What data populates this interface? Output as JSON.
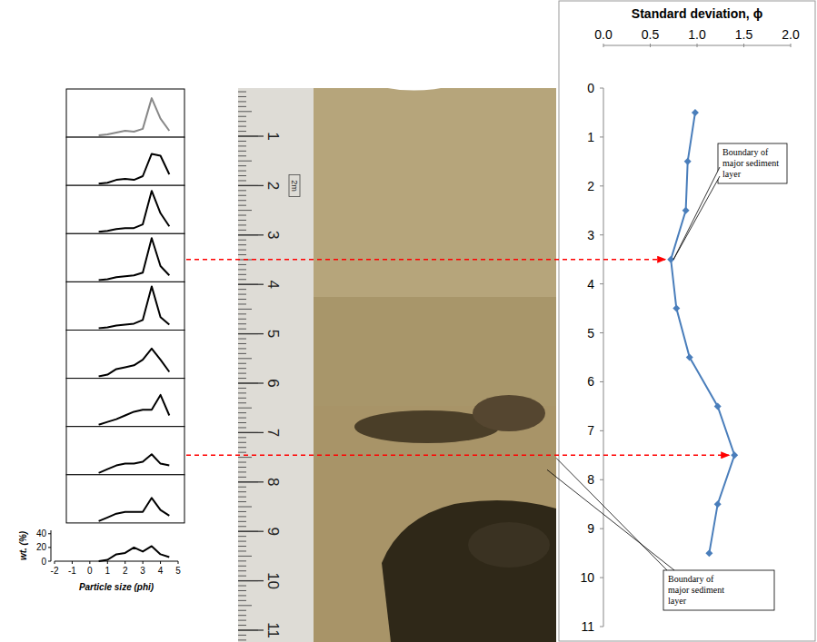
{
  "chart_data": [
    {
      "type": "line",
      "title": "Standard deviation, ϕ",
      "orientation": "horizontal",
      "x": [
        0.5,
        1.5,
        2.5,
        3.5,
        4.5,
        5.5,
        6.5,
        7.5,
        8.5,
        9.5
      ],
      "values": [
        0.98,
        0.9,
        0.88,
        0.72,
        0.78,
        0.92,
        1.22,
        1.4,
        1.22,
        1.13
      ],
      "color": "#4a7ebb",
      "marker": "diamond",
      "xlim": [
        0,
        11
      ],
      "xticks": [
        0,
        1,
        2,
        3,
        4,
        5,
        6,
        7,
        8,
        9,
        10,
        11
      ],
      "ylim": [
        0,
        2
      ],
      "yticks": [
        {
          "value": 0,
          "label": "0.0"
        },
        {
          "value": 0.5,
          "label": "0.5"
        },
        {
          "value": 1,
          "label": "1.0"
        },
        {
          "value": 1.5,
          "label": "1.5"
        },
        {
          "value": 2,
          "label": "2.0"
        }
      ],
      "annotations": [
        {
          "text": "Boundary of major sediment layer",
          "x": 3.5
        },
        {
          "text": "Boundary of major sediment layer",
          "x": 7.5
        }
      ]
    },
    {
      "type": "line",
      "tick_labels": false,
      "color": "#888888",
      "xlim": [
        -2,
        5
      ],
      "ylim": [
        0,
        45
      ],
      "x": [
        0.5,
        1,
        1.5,
        2,
        2.5,
        3,
        3.5,
        4,
        4.5
      ],
      "values": [
        0,
        1,
        3,
        5,
        4,
        7,
        40,
        18,
        5
      ]
    },
    {
      "type": "line",
      "tick_labels": false,
      "color": "#000000",
      "xlim": [
        -2,
        5
      ],
      "ylim": [
        0,
        45
      ],
      "x": [
        0.5,
        1,
        1.5,
        2,
        2.5,
        3,
        3.5,
        4,
        4.5
      ],
      "values": [
        0,
        1,
        4,
        5,
        4,
        8,
        32,
        30,
        10
      ]
    },
    {
      "type": "line",
      "tick_labels": false,
      "color": "#000000",
      "xlim": [
        -2,
        5
      ],
      "ylim": [
        0,
        45
      ],
      "x": [
        0.5,
        1,
        1.5,
        2,
        2.5,
        3,
        3.5,
        4,
        4.5
      ],
      "values": [
        0,
        1,
        3,
        4,
        4,
        8,
        44,
        20,
        6
      ]
    },
    {
      "type": "line",
      "tick_labels": false,
      "color": "#000000",
      "xlim": [
        -2,
        5
      ],
      "ylim": [
        0,
        45
      ],
      "x": [
        0.5,
        1,
        1.5,
        2,
        2.5,
        3,
        3.5,
        4,
        4.5
      ],
      "values": [
        0,
        1,
        3,
        4,
        5,
        8,
        45,
        15,
        5
      ]
    },
    {
      "type": "line",
      "tick_labels": false,
      "color": "#000000",
      "xlim": [
        -2,
        5
      ],
      "ylim": [
        0,
        45
      ],
      "x": [
        0.5,
        1,
        1.5,
        2,
        2.5,
        3,
        3.5,
        4,
        4.5
      ],
      "values": [
        0,
        1,
        3,
        4,
        5,
        9,
        45,
        12,
        4
      ]
    },
    {
      "type": "line",
      "tick_labels": false,
      "color": "#000000",
      "xlim": [
        -2,
        5
      ],
      "ylim": [
        0,
        45
      ],
      "x": [
        0.5,
        1,
        1.5,
        2,
        2.5,
        3,
        3.5,
        4,
        4.5
      ],
      "values": [
        0,
        2,
        8,
        10,
        12,
        18,
        30,
        18,
        5
      ]
    },
    {
      "type": "line",
      "tick_labels": false,
      "color": "#000000",
      "xlim": [
        -2,
        5
      ],
      "ylim": [
        0,
        45
      ],
      "x": [
        0.5,
        1,
        1.5,
        2,
        2.5,
        3,
        3.5,
        4,
        4.5
      ],
      "values": [
        0,
        3,
        6,
        10,
        14,
        16,
        16,
        32,
        10
      ]
    },
    {
      "type": "line",
      "tick_labels": false,
      "color": "#000000",
      "xlim": [
        -2,
        5
      ],
      "ylim": [
        0,
        45
      ],
      "x": [
        0.5,
        1,
        1.5,
        2,
        2.5,
        3,
        3.5,
        4,
        4.5
      ],
      "values": [
        0,
        4,
        8,
        10,
        10,
        12,
        20,
        10,
        8
      ]
    },
    {
      "type": "line",
      "tick_labels": false,
      "color": "#000000",
      "xlim": [
        -2,
        5
      ],
      "ylim": [
        0,
        45
      ],
      "x": [
        0.5,
        1,
        1.5,
        2,
        2.5,
        3,
        3.5,
        4,
        4.5
      ],
      "values": [
        0,
        4,
        8,
        10,
        10,
        10,
        25,
        12,
        6
      ]
    },
    {
      "type": "line",
      "color": "#000000",
      "x_label": "Particle size (phi)",
      "y_label": "wt. (%)",
      "xlim": [
        -2,
        5
      ],
      "ylim": [
        0,
        45
      ],
      "xticks": [
        -2,
        -1,
        0,
        1,
        2,
        3,
        4,
        5
      ],
      "yticks": [
        0,
        20,
        40
      ],
      "x": [
        0.5,
        1,
        1.5,
        2,
        2.5,
        3,
        3.5,
        4,
        4.5
      ],
      "values": [
        0,
        2,
        10,
        12,
        20,
        14,
        22,
        10,
        6
      ]
    }
  ],
  "ruler": {
    "mark": "2m",
    "labels": [
      1,
      2,
      3,
      4,
      5,
      6,
      7,
      8,
      9,
      10,
      11
    ]
  }
}
